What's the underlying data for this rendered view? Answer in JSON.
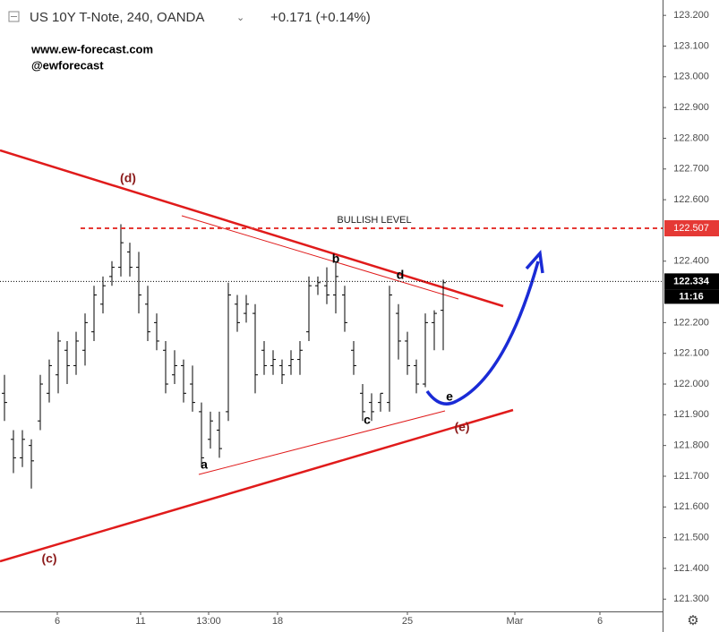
{
  "header": {
    "symbol": "US 10Y T-Note, 240, OANDA",
    "change": "+0.171 (+0.14%)"
  },
  "watermark": {
    "site": "www.ew-forecast.com",
    "handle": "@ewforecast"
  },
  "chart_data": {
    "type": "ohlc",
    "color": "#000000",
    "xlim": [
      -0.5,
      73.5
    ],
    "ylim": [
      121.26,
      123.25
    ],
    "xticks": [
      {
        "value": 5.9,
        "label": "6"
      },
      {
        "value": 15.2,
        "label": "11"
      },
      {
        "value": 22.8,
        "label": "13:00"
      },
      {
        "value": 30.5,
        "label": "18"
      },
      {
        "value": 45,
        "label": "25"
      },
      {
        "value": 57,
        "label": "Mar"
      },
      {
        "value": 66.5,
        "label": "6"
      }
    ],
    "yticks": [
      {
        "value": 121.3,
        "label": "121.300"
      },
      {
        "value": 121.4,
        "label": "121.400"
      },
      {
        "value": 121.5,
        "label": "121.500"
      },
      {
        "value": 121.6,
        "label": "121.600"
      },
      {
        "value": 121.7,
        "label": "121.700"
      },
      {
        "value": 121.8,
        "label": "121.800"
      },
      {
        "value": 121.9,
        "label": "121.900"
      },
      {
        "value": 122.0,
        "label": "122.000"
      },
      {
        "value": 122.1,
        "label": "122.100"
      },
      {
        "value": 122.2,
        "label": "122.200"
      },
      {
        "value": 122.4,
        "label": "122.400"
      },
      {
        "value": 122.6,
        "label": "122.600"
      },
      {
        "value": 122.7,
        "label": "122.700"
      },
      {
        "value": 122.8,
        "label": "122.800"
      },
      {
        "value": 122.9,
        "label": "122.900"
      },
      {
        "value": 123.0,
        "label": "123.000"
      },
      {
        "value": 123.1,
        "label": "123.100"
      },
      {
        "value": 123.2,
        "label": "123.200"
      }
    ],
    "open": [
      121.97,
      121.82,
      121.76,
      121.8,
      121.88,
      121.97,
      122.03,
      122.11,
      122.06,
      122.11,
      122.17,
      122.26,
      122.35,
      122.38,
      122.43,
      122.38,
      122.26,
      122.2,
      122.11,
      122.03,
      122.06,
      122.0,
      121.91,
      121.82,
      121.85,
      121.91,
      122.26,
      122.23,
      122.23,
      122.11,
      122.06,
      122.06,
      122.06,
      122.08,
      122.17,
      122.32,
      122.32,
      122.29,
      122.29,
      122.11,
      121.97,
      121.94,
      121.94,
      121.94,
      122.23,
      122.14,
      122.06,
      122.0,
      122.2,
      122.24
    ],
    "high": [
      122.03,
      121.85,
      121.85,
      121.82,
      122.03,
      122.08,
      122.17,
      122.14,
      122.17,
      122.23,
      122.32,
      122.35,
      122.4,
      122.52,
      122.46,
      122.43,
      122.32,
      122.23,
      122.14,
      122.11,
      122.08,
      122.06,
      121.94,
      121.91,
      121.91,
      122.33,
      122.29,
      122.29,
      122.26,
      122.14,
      122.11,
      122.08,
      122.11,
      122.14,
      122.35,
      122.35,
      122.38,
      122.4,
      122.32,
      122.14,
      122.0,
      121.97,
      121.97,
      122.32,
      122.26,
      122.17,
      122.08,
      122.23,
      122.24,
      122.34
    ],
    "low": [
      121.88,
      121.71,
      121.73,
      121.66,
      121.85,
      121.94,
      121.97,
      122.0,
      122.03,
      122.06,
      122.14,
      122.23,
      122.32,
      122.35,
      122.35,
      122.23,
      122.14,
      122.11,
      121.97,
      122.0,
      121.94,
      121.91,
      121.73,
      121.79,
      121.76,
      121.88,
      122.17,
      122.2,
      121.97,
      122.03,
      122.03,
      122.0,
      122.03,
      122.03,
      122.14,
      122.29,
      122.26,
      122.23,
      122.17,
      122.03,
      121.88,
      121.88,
      121.91,
      121.91,
      122.08,
      122.03,
      121.97,
      121.99,
      122.11,
      122.11
    ],
    "close": [
      121.94,
      121.76,
      121.82,
      121.75,
      122.0,
      122.06,
      122.14,
      122.06,
      122.14,
      122.2,
      122.29,
      122.32,
      122.38,
      122.46,
      122.38,
      122.29,
      122.17,
      122.14,
      122.0,
      122.06,
      121.97,
      121.94,
      121.76,
      121.88,
      121.79,
      122.29,
      122.2,
      122.26,
      122.03,
      122.06,
      122.08,
      122.03,
      122.08,
      122.11,
      122.32,
      122.33,
      122.29,
      122.35,
      122.2,
      122.06,
      121.91,
      121.91,
      121.97,
      122.29,
      122.14,
      122.06,
      122.0,
      122.2,
      122.23,
      122.33
    ],
    "levels": [
      {
        "name": "BULLISH LEVEL",
        "value": 122.507,
        "label": "122.507",
        "color": "#e53935"
      },
      {
        "value": 122.334,
        "label": "122.334",
        "color": "#000000",
        "countdown": "11:16"
      }
    ],
    "annotations": [
      "(d)",
      "(c)",
      "(e)",
      "a",
      "b",
      "c",
      "d",
      "e"
    ]
  }
}
